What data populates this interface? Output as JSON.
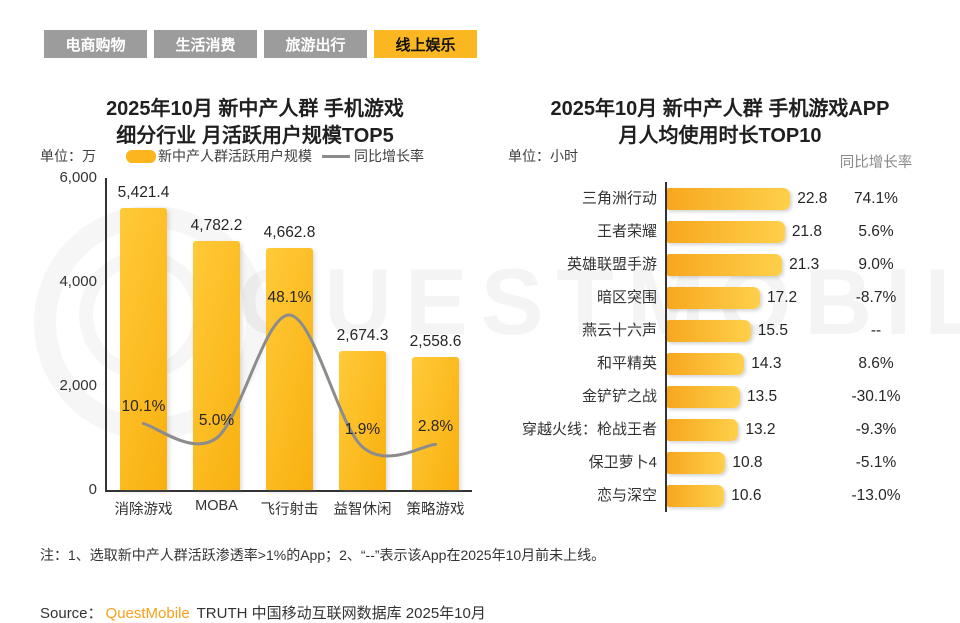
{
  "tabs": [
    {
      "label": "电商购物",
      "active": false
    },
    {
      "label": "生活消费",
      "active": false
    },
    {
      "label": "旅游出行",
      "active": false
    },
    {
      "label": "线上娱乐",
      "active": true
    }
  ],
  "watermark": {
    "text": "QUESTMOBILE"
  },
  "colors": {
    "brand_yellow": "#FBB722",
    "bar_gradient_start": "#F7A71F",
    "bar_gradient_end": "#FFD04A",
    "line_gray": "#8C8C8C",
    "tab_gray": "#9C9C9C",
    "source_orange": "#F8A11B"
  },
  "chart_data": [
    {
      "type": "bar",
      "title_lines": [
        "2025年10月 新中产人群 手机游戏",
        "细分行业 月活跃用户规模TOP5"
      ],
      "unit": "单位：万",
      "categories": [
        "消除游戏",
        "MOBA",
        "飞行射击",
        "益智休闲",
        "策略游戏"
      ],
      "series": [
        {
          "name": "新中产人群活跃用户规模",
          "type": "bar",
          "values": [
            5421.4,
            4782.2,
            4662.8,
            2674.3,
            2558.6
          ]
        },
        {
          "name": "同比增长率",
          "type": "line",
          "unit": "%",
          "values": [
            10.1,
            5.0,
            48.1,
            1.9,
            2.8
          ]
        }
      ],
      "ylim": [
        0,
        6000
      ],
      "yticks": [
        6000,
        4000,
        2000,
        0
      ],
      "grid": false,
      "legend_position": "top"
    },
    {
      "type": "bar-horizontal",
      "title_lines": [
        "2025年10月 新中产人群 手机游戏APP",
        "月人均使用时长TOP10"
      ],
      "unit": "单位：小时",
      "growth_header": "同比增长率",
      "xlim": [
        0,
        23.5
      ],
      "items": [
        {
          "label": "三角洲行动",
          "value": 22.8,
          "growth": "74.1%"
        },
        {
          "label": "王者荣耀",
          "value": 21.8,
          "growth": "5.6%"
        },
        {
          "label": "英雄联盟手游",
          "value": 21.3,
          "growth": "9.0%"
        },
        {
          "label": "暗区突围",
          "value": 17.2,
          "growth": "-8.7%"
        },
        {
          "label": "燕云十六声",
          "value": 15.5,
          "growth": "--"
        },
        {
          "label": "和平精英",
          "value": 14.3,
          "growth": "8.6%"
        },
        {
          "label": "金铲铲之战",
          "value": 13.5,
          "growth": "-30.1%"
        },
        {
          "label": "穿越火线：枪战王者",
          "value": 13.2,
          "growth": "-9.3%"
        },
        {
          "label": "保卫萝卜4",
          "value": 10.8,
          "growth": "-5.1%"
        },
        {
          "label": "恋与深空",
          "value": 10.6,
          "growth": "-13.0%"
        }
      ]
    }
  ],
  "note": "注：1、选取新中产人群活跃渗透率>1%的App；2、“--”表示该App在2025年10月前未上线。",
  "source": {
    "prefix": "Source：",
    "brand": "QuestMobile",
    "suffix": " TRUTH 中国移动互联网数据库 2025年10月"
  }
}
